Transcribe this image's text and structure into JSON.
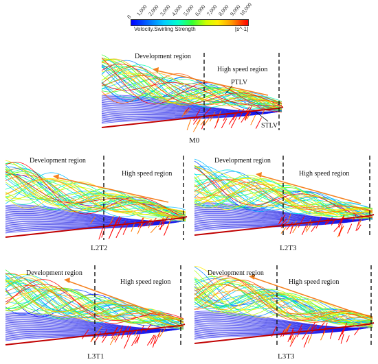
{
  "colorbar": {
    "ticks": [
      "0",
      "1,000",
      "2,000",
      "3,000",
      "4,000",
      "5,000",
      "6,000",
      "7,000",
      "8,000",
      "9,000",
      "10,000"
    ],
    "label": "Velocity.Swirling Strength",
    "unit": "[s^-1]"
  },
  "panels": [
    {
      "id": "M0",
      "caption": "M0",
      "dev_label": "Development region",
      "high_label": "High speed region",
      "ptlv_label": "PTLV",
      "stlv_label": "STLV"
    },
    {
      "id": "L2T2",
      "caption": "L2T2",
      "dev_label": "Development region",
      "high_label": "High speed region"
    },
    {
      "id": "L2T3",
      "caption": "L2T3",
      "dev_label": "Development region",
      "high_label": "High speed region"
    },
    {
      "id": "L3T1",
      "caption": "L3T1",
      "dev_label": "Development region",
      "high_label": "High speed region"
    },
    {
      "id": "L3T3",
      "caption": "L3T3",
      "dev_label": "Development region",
      "high_label": "High speed region"
    }
  ],
  "colors": {
    "arrow": "#f58220",
    "dashed_line": "#111111"
  }
}
